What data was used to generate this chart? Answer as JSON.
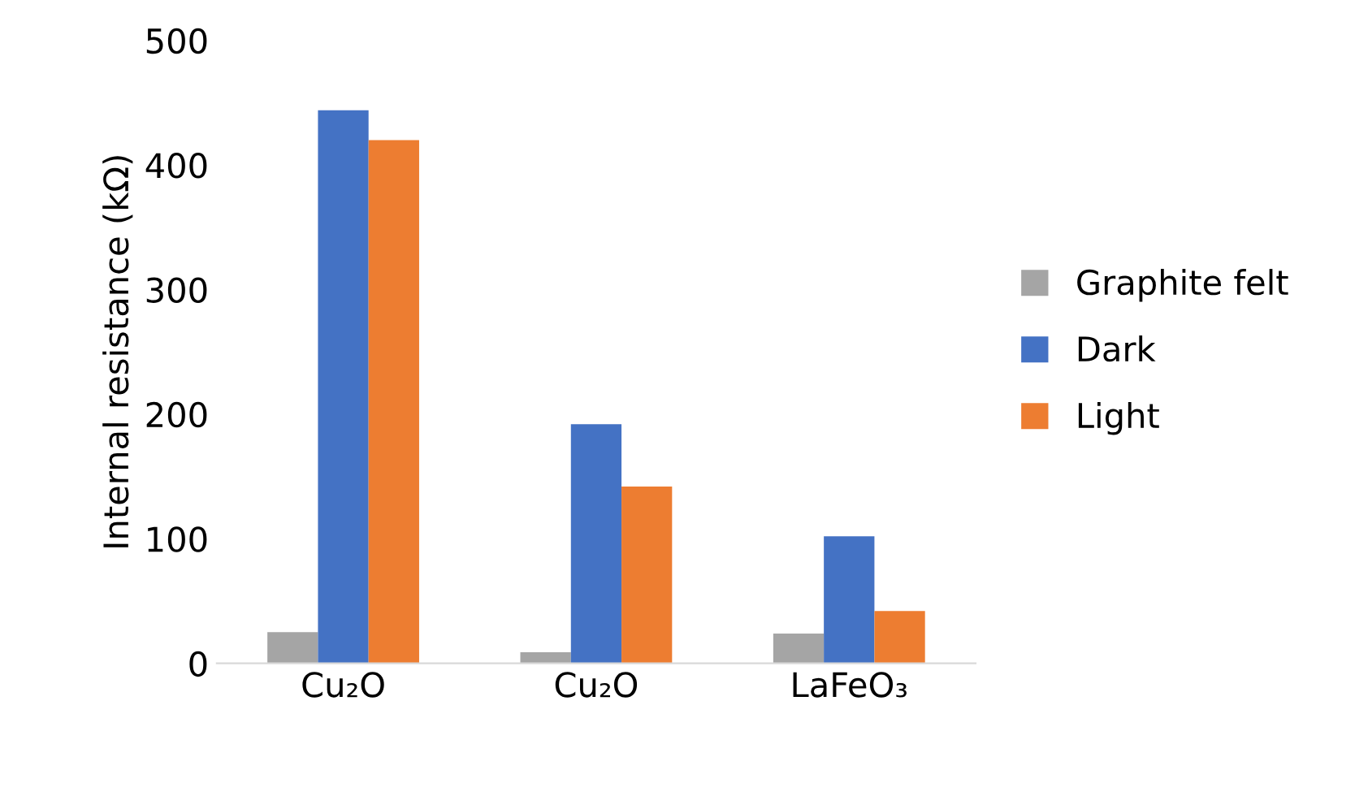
{
  "chart_data": {
    "type": "bar",
    "ylabel": "Internal resistance (kΩ)",
    "categories": [
      "Cu₂O",
      "Cu₂O",
      "LaFeO₃"
    ],
    "series": [
      {
        "name": "Graphite felt",
        "color": "#a5a5a5",
        "values": [
          25,
          9,
          24
        ]
      },
      {
        "name": "Dark",
        "color": "#4472c4",
        "values": [
          444,
          192,
          102
        ]
      },
      {
        "name": "Light",
        "color": "#ed7d31",
        "values": [
          420,
          142,
          42
        ]
      }
    ],
    "ylim": [
      0,
      500
    ],
    "yticks": [
      0,
      100,
      200,
      300,
      400,
      500
    ],
    "grid": false,
    "legend": "right"
  }
}
